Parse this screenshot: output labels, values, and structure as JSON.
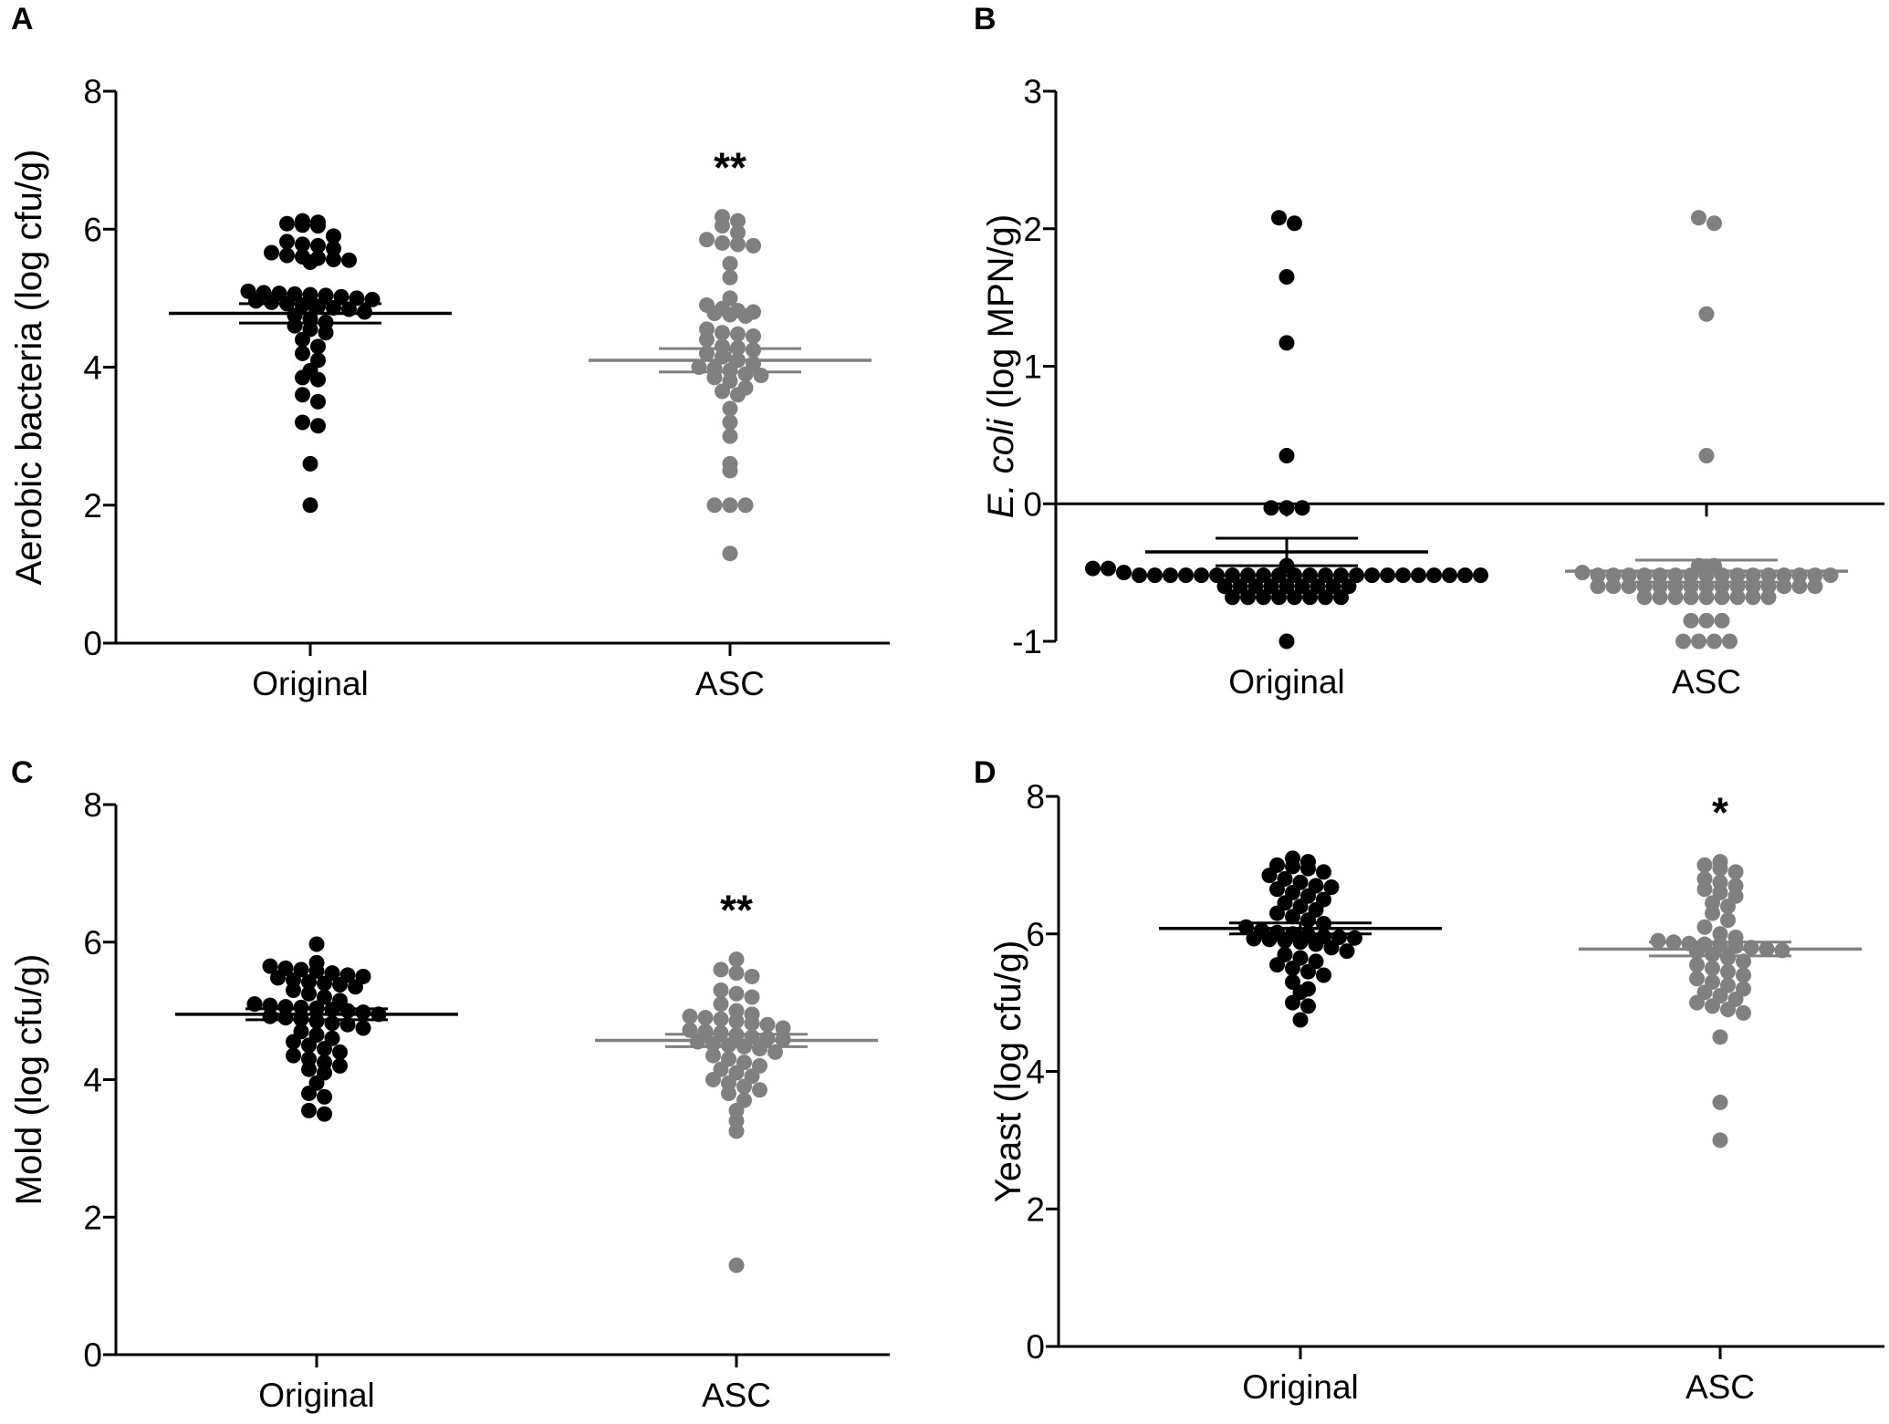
{
  "colors": {
    "original": "#000000",
    "asc": "#808080",
    "axis": "#000000"
  },
  "chart_data": [
    {
      "type": "scatter",
      "panel": "A",
      "ylabel": "Aerobic bacteria (log cfu/g)",
      "ylabel_italic": "",
      "ylim": [
        0,
        8
      ],
      "yticks": [
        0,
        2,
        4,
        6,
        8
      ],
      "categories": [
        "Original",
        "ASC"
      ],
      "significance": "**",
      "series": [
        {
          "name": "Original",
          "mean": 4.78,
          "sem": 0.14,
          "values": [
            6.12,
            6.1,
            6.08,
            6.06,
            6.05,
            5.9,
            5.82,
            5.78,
            5.76,
            5.72,
            5.66,
            5.62,
            5.6,
            5.58,
            5.56,
            5.55,
            5.52,
            5.1,
            5.08,
            5.07,
            5.06,
            5.05,
            5.04,
            5.02,
            5.0,
            4.98,
            4.96,
            4.94,
            4.92,
            4.9,
            4.88,
            4.86,
            4.84,
            4.8,
            4.75,
            4.7,
            4.65,
            4.6,
            4.55,
            4.5,
            4.4,
            4.3,
            4.2,
            4.1,
            3.95,
            3.85,
            3.82,
            3.6,
            3.5,
            3.2,
            3.15,
            2.6,
            2.0
          ]
        },
        {
          "name": "ASC",
          "mean": 4.1,
          "sem": 0.17,
          "values": [
            6.18,
            6.12,
            6.05,
            5.95,
            5.85,
            5.8,
            5.78,
            5.76,
            5.5,
            5.3,
            5.0,
            4.9,
            4.85,
            4.82,
            4.8,
            4.78,
            4.76,
            4.74,
            4.55,
            4.5,
            4.48,
            4.45,
            4.4,
            4.3,
            4.28,
            4.25,
            4.2,
            4.15,
            4.1,
            4.05,
            4.0,
            3.98,
            3.95,
            3.9,
            3.88,
            3.85,
            3.8,
            3.7,
            3.65,
            3.6,
            3.4,
            3.2,
            3.0,
            2.6,
            2.5,
            2.0,
            2.0,
            2.0,
            1.3
          ]
        }
      ]
    },
    {
      "type": "scatter",
      "panel": "B",
      "ylabel": "(log MPN/g)",
      "ylabel_italic": "E. coli",
      "ylim": [
        -1,
        3
      ],
      "yticks": [
        -1,
        0,
        1,
        2,
        3
      ],
      "categories": [
        "Original",
        "ASC"
      ],
      "significance": "",
      "series": [
        {
          "name": "Original",
          "mean": -0.35,
          "sem": 0.1,
          "values": [
            2.08,
            2.04,
            1.65,
            1.17,
            0.35,
            -0.03,
            -0.03,
            -0.03,
            -0.45,
            -0.47,
            -0.47,
            -0.5,
            -0.52,
            -0.52,
            -0.52,
            -0.52,
            -0.52,
            -0.52,
            -0.52,
            -0.52,
            -0.52,
            -0.52,
            -0.52,
            -0.52,
            -0.52,
            -0.52,
            -0.52,
            -0.52,
            -0.52,
            -0.52,
            -0.52,
            -0.52,
            -0.52,
            -0.52,
            -0.52,
            -0.6,
            -0.6,
            -0.6,
            -0.6,
            -0.6,
            -0.6,
            -0.6,
            -0.6,
            -0.6,
            -0.68,
            -0.68,
            -0.68,
            -0.68,
            -0.68,
            -0.68,
            -0.68,
            -0.68,
            -1.0
          ]
        },
        {
          "name": "ASC",
          "mean": -0.49,
          "sem": 0.08,
          "values": [
            2.08,
            2.04,
            1.38,
            0.35,
            -0.45,
            -0.45,
            -0.5,
            -0.52,
            -0.52,
            -0.52,
            -0.52,
            -0.52,
            -0.52,
            -0.52,
            -0.52,
            -0.52,
            -0.52,
            -0.52,
            -0.52,
            -0.52,
            -0.52,
            -0.52,
            -0.52,
            -0.6,
            -0.6,
            -0.6,
            -0.6,
            -0.6,
            -0.6,
            -0.6,
            -0.6,
            -0.6,
            -0.6,
            -0.6,
            -0.6,
            -0.6,
            -0.6,
            -0.6,
            -0.68,
            -0.68,
            -0.68,
            -0.68,
            -0.68,
            -0.68,
            -0.68,
            -0.68,
            -0.68,
            -0.85,
            -0.85,
            -0.85,
            -1.0,
            -1.0,
            -1.0,
            -1.0
          ]
        }
      ]
    },
    {
      "type": "scatter",
      "panel": "C",
      "ylabel": "Mold (log cfu/g)",
      "ylabel_italic": "",
      "ylim": [
        0,
        8
      ],
      "yticks": [
        0,
        2,
        4,
        6,
        8
      ],
      "categories": [
        "Original",
        "ASC"
      ],
      "significance": "**",
      "series": [
        {
          "name": "Original",
          "mean": 4.95,
          "sem": 0.08,
          "values": [
            5.97,
            5.7,
            5.65,
            5.62,
            5.6,
            5.58,
            5.55,
            5.52,
            5.5,
            5.48,
            5.45,
            5.42,
            5.4,
            5.38,
            5.35,
            5.3,
            5.25,
            5.2,
            5.15,
            5.1,
            5.08,
            5.06,
            5.05,
            5.04,
            5.02,
            5.0,
            4.98,
            4.95,
            4.92,
            4.9,
            4.88,
            4.85,
            4.82,
            4.8,
            4.75,
            4.7,
            4.65,
            4.6,
            4.55,
            4.5,
            4.45,
            4.4,
            4.35,
            4.3,
            4.25,
            4.2,
            4.15,
            4.1,
            3.95,
            3.8,
            3.75,
            3.55,
            3.5
          ]
        },
        {
          "name": "ASC",
          "mean": 4.57,
          "sem": 0.09,
          "values": [
            5.75,
            5.6,
            5.55,
            5.5,
            5.3,
            5.25,
            5.2,
            5.1,
            5.0,
            4.95,
            4.92,
            4.9,
            4.88,
            4.85,
            4.82,
            4.8,
            4.75,
            4.72,
            4.7,
            4.68,
            4.65,
            4.62,
            4.6,
            4.58,
            4.55,
            4.52,
            4.5,
            4.48,
            4.45,
            4.4,
            4.35,
            4.3,
            4.25,
            4.2,
            4.15,
            4.1,
            4.05,
            4.0,
            3.95,
            3.9,
            3.85,
            3.8,
            3.7,
            3.55,
            3.4,
            3.25,
            1.3
          ]
        }
      ]
    },
    {
      "type": "scatter",
      "panel": "D",
      "ylabel": "Yeast (log cfu/g)",
      "ylabel_italic": "",
      "ylim": [
        0,
        8
      ],
      "yticks": [
        0,
        2,
        4,
        6,
        8
      ],
      "categories": [
        "Original",
        "ASC"
      ],
      "significance": "*",
      "series": [
        {
          "name": "Original",
          "mean": 6.08,
          "sem": 0.08,
          "values": [
            7.1,
            7.05,
            7.0,
            6.98,
            6.95,
            6.9,
            6.85,
            6.8,
            6.75,
            6.7,
            6.68,
            6.65,
            6.6,
            6.55,
            6.5,
            6.45,
            6.4,
            6.35,
            6.3,
            6.25,
            6.2,
            6.15,
            6.1,
            6.05,
            6.02,
            6.0,
            5.98,
            5.96,
            5.95,
            5.94,
            5.93,
            5.92,
            5.9,
            5.88,
            5.85,
            5.8,
            5.75,
            5.7,
            5.65,
            5.6,
            5.55,
            5.5,
            5.45,
            5.4,
            5.3,
            5.2,
            5.15,
            5.0,
            4.95,
            4.75
          ]
        },
        {
          "name": "ASC",
          "mean": 5.78,
          "sem": 0.1,
          "values": [
            7.05,
            7.0,
            6.95,
            6.9,
            6.8,
            6.75,
            6.7,
            6.65,
            6.6,
            6.55,
            6.45,
            6.4,
            6.3,
            6.2,
            6.1,
            6.0,
            5.95,
            5.9,
            5.88,
            5.86,
            5.85,
            5.84,
            5.82,
            5.8,
            5.78,
            5.76,
            5.74,
            5.7,
            5.65,
            5.6,
            5.55,
            5.5,
            5.45,
            5.4,
            5.35,
            5.3,
            5.25,
            5.2,
            5.15,
            5.1,
            5.05,
            5.0,
            4.95,
            4.9,
            4.85,
            4.5,
            3.55,
            3.0
          ]
        }
      ]
    }
  ]
}
